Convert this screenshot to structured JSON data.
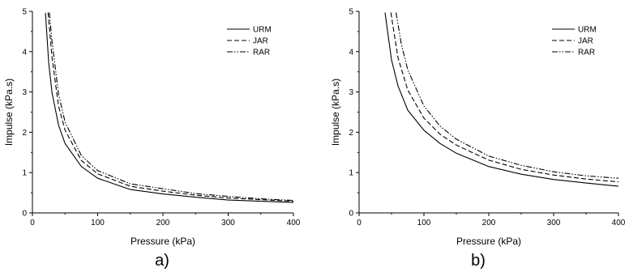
{
  "chart_data": [
    {
      "type": "line",
      "panel_label": "a)",
      "xlabel": "Pressure (kPa)",
      "ylabel": "Impulse (kPa.s)",
      "xlim": [
        0,
        400
      ],
      "ylim": [
        0,
        5
      ],
      "xticks": [
        "0",
        "100",
        "200",
        "300",
        "400"
      ],
      "yticks": [
        "0",
        "1",
        "2",
        "3",
        "4",
        "5"
      ],
      "grid": false,
      "legend_position": "top-right",
      "series": [
        {
          "name": "URM",
          "style": "solid",
          "x": [
            20,
            25,
            30,
            40,
            50,
            75,
            100,
            150,
            200,
            250,
            300,
            350,
            400
          ],
          "y": [
            4.96,
            3.72,
            2.98,
            2.18,
            1.72,
            1.15,
            0.86,
            0.58,
            0.47,
            0.39,
            0.32,
            0.29,
            0.26
          ]
        },
        {
          "name": "JAR",
          "style": "dashed",
          "x": [
            24,
            30,
            40,
            50,
            75,
            100,
            150,
            200,
            250,
            300,
            350,
            400
          ],
          "y": [
            4.97,
            3.85,
            2.65,
            2.05,
            1.3,
            0.97,
            0.66,
            0.54,
            0.44,
            0.37,
            0.33,
            0.29
          ]
        },
        {
          "name": "RAR",
          "style": "dashdotdot",
          "x": [
            26,
            30,
            40,
            50,
            75,
            100,
            150,
            200,
            250,
            300,
            350,
            400
          ],
          "y": [
            4.97,
            4.25,
            2.95,
            2.25,
            1.42,
            1.05,
            0.72,
            0.6,
            0.48,
            0.41,
            0.35,
            0.31
          ]
        }
      ]
    },
    {
      "type": "line",
      "panel_label": "b)",
      "xlabel": "Pressure (kPa)",
      "ylabel": "Impulse (kPa.s)",
      "xlim": [
        0,
        400
      ],
      "ylim": [
        0,
        5
      ],
      "xticks": [
        "0",
        "100",
        "200",
        "300",
        "400"
      ],
      "yticks": [
        "0",
        "1",
        "2",
        "3",
        "4",
        "5"
      ],
      "grid": false,
      "legend_position": "top-right",
      "series": [
        {
          "name": "URM",
          "style": "solid",
          "x": [
            40,
            50,
            60,
            75,
            100,
            125,
            150,
            200,
            250,
            300,
            350,
            400
          ],
          "y": [
            4.97,
            3.8,
            3.15,
            2.55,
            2.05,
            1.72,
            1.48,
            1.15,
            0.96,
            0.83,
            0.74,
            0.66
          ]
        },
        {
          "name": "JAR",
          "style": "dashed",
          "x": [
            49,
            60,
            75,
            100,
            125,
            150,
            200,
            250,
            300,
            350,
            400
          ],
          "y": [
            4.97,
            3.85,
            3.05,
            2.35,
            1.95,
            1.68,
            1.31,
            1.08,
            0.94,
            0.84,
            0.77
          ]
        },
        {
          "name": "RAR",
          "style": "dashdotdot",
          "x": [
            57,
            65,
            75,
            100,
            125,
            150,
            200,
            250,
            300,
            350,
            400
          ],
          "y": [
            4.97,
            4.2,
            3.55,
            2.65,
            2.15,
            1.83,
            1.41,
            1.18,
            1.02,
            0.92,
            0.86
          ]
        }
      ]
    }
  ]
}
